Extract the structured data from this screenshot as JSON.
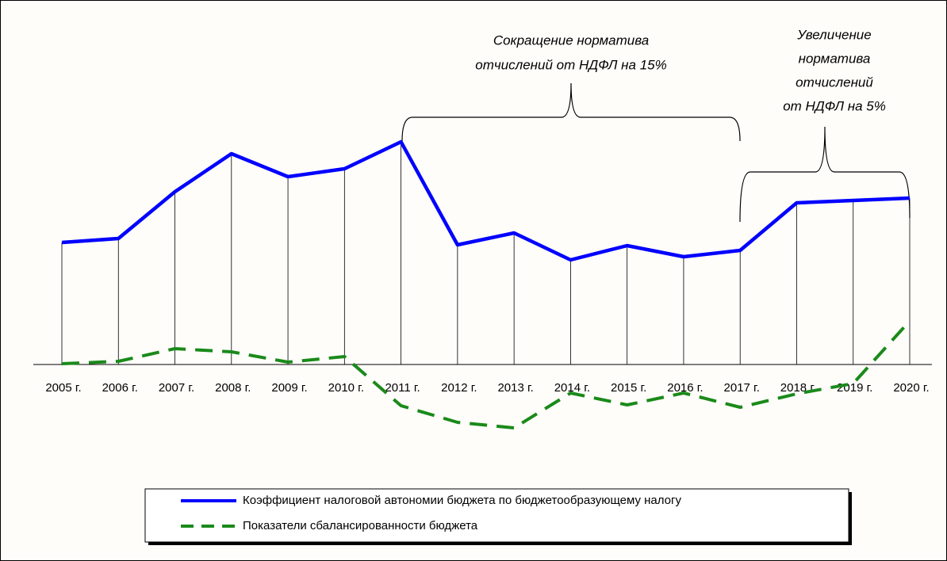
{
  "chart_data": {
    "type": "line",
    "categories": [
      "2005 г.",
      "2006 г.",
      "2007 г.",
      "2008 г.",
      "2009 г.",
      "2010 г.",
      "2011 г.",
      "2012 г.",
      "2013 г.",
      "2014 г.",
      "2015 г.",
      "2016 г.",
      "2017 г.",
      "2018 г.",
      "2019 г.",
      "2020 г."
    ],
    "series": [
      {
        "name": "Коэффициент налоговой автономии бюджета по бюджетообразующему налогу",
        "color": "#0000ff",
        "dash": false,
        "values": [
          1.54,
          1.59,
          2.18,
          2.66,
          2.37,
          2.47,
          2.81,
          1.51,
          1.66,
          1.32,
          1.5,
          1.36,
          1.44,
          2.04,
          2.07,
          2.1
        ]
      },
      {
        "name": "Показатели сбалансированности бюджета",
        "color": "#1a8a1a",
        "dash": true,
        "values": [
          0.01,
          0.04,
          0.2,
          0.16,
          0.03,
          0.1,
          -0.52,
          -0.73,
          -0.8,
          -0.36,
          -0.51,
          -0.36,
          -0.54,
          -0.37,
          -0.24,
          0.55
        ]
      }
    ],
    "ylim": [
      -1,
      3
    ],
    "annotations": [
      {
        "lines": [
          "Сокращение норматива",
          "отчислений от НДФЛ на 15%"
        ]
      },
      {
        "lines": [
          "Увеличение",
          "норматива",
          "отчислений",
          "от НДФЛ на 5%"
        ]
      }
    ]
  }
}
